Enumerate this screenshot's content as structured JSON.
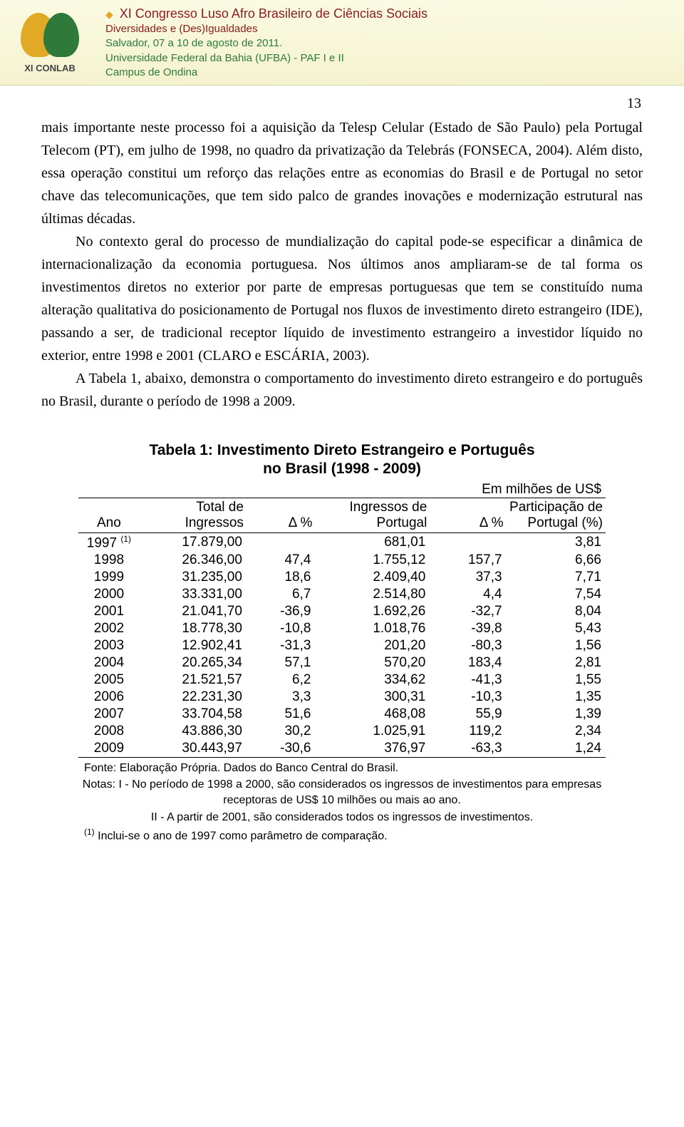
{
  "header": {
    "logo_label": "XI CONLAB",
    "title": "XI Congresso Luso Afro Brasileiro de Ciências Sociais",
    "subtitle": "Diversidades e (Des)Igualdades",
    "location1": "Salvador, 07 a 10 de agosto de 2011.",
    "location2": "Universidade Federal da Bahia (UFBA) - PAF I e II",
    "location3": "Campus de Ondina"
  },
  "page_number": "13",
  "body": {
    "p1": "mais importante neste processo foi a aquisição da Telesp Celular (Estado de São Paulo) pela Portugal Telecom (PT), em julho de 1998, no quadro da privatização da Telebrás (FONSECA, 2004). Além disto, essa operação constitui um reforço das relações entre as economias do Brasil e de Portugal no setor chave das telecomunicações, que tem sido palco de grandes inovações e modernização estrutural nas últimas décadas.",
    "p2": "No contexto geral do processo de mundialização do capital pode-se especificar a dinâmica de internacionalização da economia portuguesa. Nos últimos anos ampliaram-se de tal forma os investimentos diretos no exterior por parte de empresas portuguesas que tem se constituído numa alteração qualitativa do posicionamento de Portugal nos fluxos de investimento direto estrangeiro (IDE), passando a ser, de tradicional receptor líquido de investimento estrangeiro a investidor líquido no exterior, entre 1998 e 2001 (CLARO e ESCÁRIA, 2003).",
    "p3": "A Tabela 1, abaixo, demonstra o comportamento do investimento direto estrangeiro e do português no Brasil, durante o período de 1998 a 2009."
  },
  "table": {
    "title_l1": "Tabela 1: Investimento Direto Estrangeiro e Português",
    "title_l2": "no Brasil (1998 - 2009)",
    "unit": "Em milhões de US$",
    "columns": {
      "ano": "Ano",
      "total": "Total de Ingressos",
      "delta1": "Δ %",
      "ing_pt": "Ingressos de Portugal",
      "delta2": "Δ %",
      "part": "Participação de Portugal (%)"
    },
    "rows": [
      {
        "ano": "1997",
        "sup": "(1)",
        "total": "17.879,00",
        "d1": "",
        "ing": "681,01",
        "d2": "",
        "pp": "3,81"
      },
      {
        "ano": "1998",
        "sup": "",
        "total": "26.346,00",
        "d1": "47,4",
        "ing": "1.755,12",
        "d2": "157,7",
        "pp": "6,66"
      },
      {
        "ano": "1999",
        "sup": "",
        "total": "31.235,00",
        "d1": "18,6",
        "ing": "2.409,40",
        "d2": "37,3",
        "pp": "7,71"
      },
      {
        "ano": "2000",
        "sup": "",
        "total": "33.331,00",
        "d1": "6,7",
        "ing": "2.514,80",
        "d2": "4,4",
        "pp": "7,54"
      },
      {
        "ano": "2001",
        "sup": "",
        "total": "21.041,70",
        "d1": "-36,9",
        "ing": "1.692,26",
        "d2": "-32,7",
        "pp": "8,04"
      },
      {
        "ano": "2002",
        "sup": "",
        "total": "18.778,30",
        "d1": "-10,8",
        "ing": "1.018,76",
        "d2": "-39,8",
        "pp": "5,43"
      },
      {
        "ano": "2003",
        "sup": "",
        "total": "12.902,41",
        "d1": "-31,3",
        "ing": "201,20",
        "d2": "-80,3",
        "pp": "1,56"
      },
      {
        "ano": "2004",
        "sup": "",
        "total": "20.265,34",
        "d1": "57,1",
        "ing": "570,20",
        "d2": "183,4",
        "pp": "2,81"
      },
      {
        "ano": "2005",
        "sup": "",
        "total": "21.521,57",
        "d1": "6,2",
        "ing": "334,62",
        "d2": "-41,3",
        "pp": "1,55"
      },
      {
        "ano": "2006",
        "sup": "",
        "total": "22.231,30",
        "d1": "3,3",
        "ing": "300,31",
        "d2": "-10,3",
        "pp": "1,35"
      },
      {
        "ano": "2007",
        "sup": "",
        "total": "33.704,58",
        "d1": "51,6",
        "ing": "468,08",
        "d2": "55,9",
        "pp": "1,39"
      },
      {
        "ano": "2008",
        "sup": "",
        "total": "43.886,30",
        "d1": "30,2",
        "ing": "1.025,91",
        "d2": "119,2",
        "pp": "2,34"
      },
      {
        "ano": "2009",
        "sup": "",
        "total": "30.443,97",
        "d1": "-30,6",
        "ing": "376,97",
        "d2": "-63,3",
        "pp": "1,24"
      }
    ],
    "source": "Fonte: Elaboração Própria. Dados do Banco Central do Brasil.",
    "note1": "Notas: I - No período de 1998 a 2000, são considerados os ingressos de investimentos para empresas receptoras de US$ 10 milhões ou mais ao ano.",
    "note2": "II - A partir de 2001, são considerados todos os ingressos de investimentos.",
    "note3_sup": "(1)",
    "note3": " Inclui-se o ano de 1997 como parâmetro de comparação."
  }
}
